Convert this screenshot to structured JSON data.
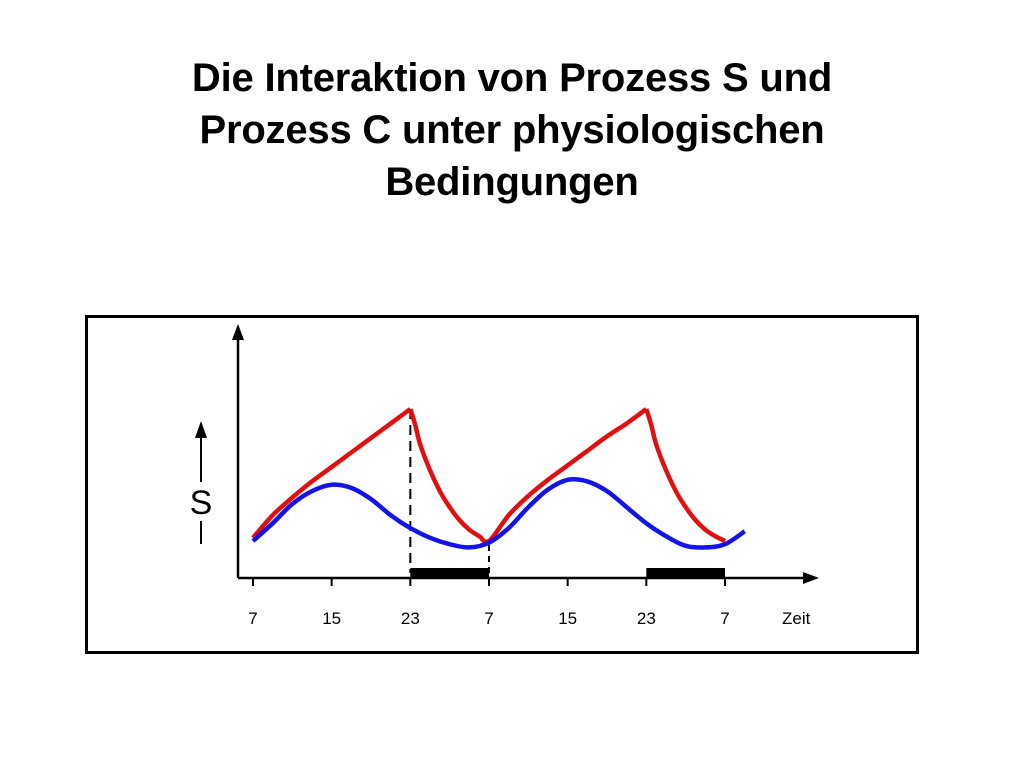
{
  "title": {
    "lines": [
      "Die Interaktion von Prozess S und",
      "Prozess C unter physiologischen",
      "Bedingungen"
    ]
  },
  "chart_data": {
    "type": "line",
    "xlabel": "Zeit",
    "ylabel": "S",
    "x_ticks": [
      "7",
      "15",
      "23",
      "7",
      "15",
      "23",
      "7"
    ],
    "x_tick_hours": [
      7,
      15,
      23,
      31,
      39,
      47,
      55
    ],
    "xlim": [
      7,
      58
    ],
    "ylim": [
      0,
      1
    ],
    "grid": false,
    "colors": {
      "process_s": "#e01010",
      "process_c": "#1414e6",
      "axis": "#000000"
    },
    "sleep_periods": [
      [
        23,
        31
      ],
      [
        47,
        55
      ]
    ],
    "series": [
      {
        "key": "process_s",
        "x": [
          7,
          9,
          11,
          13,
          15,
          17,
          19,
          21,
          23,
          23.5,
          24,
          25,
          26,
          27,
          28,
          29,
          30,
          31,
          33,
          35,
          37,
          39,
          41,
          43,
          45,
          47,
          47.5,
          48,
          49,
          50,
          51,
          52,
          53,
          54,
          55
        ],
        "values": [
          0.02,
          0.16,
          0.27,
          0.37,
          0.46,
          0.55,
          0.64,
          0.73,
          0.82,
          0.72,
          0.6,
          0.44,
          0.31,
          0.21,
          0.13,
          0.07,
          0.03,
          0.0,
          0.16,
          0.28,
          0.38,
          0.47,
          0.56,
          0.65,
          0.73,
          0.82,
          0.72,
          0.6,
          0.44,
          0.31,
          0.21,
          0.13,
          0.07,
          0.03,
          0.0
        ]
      },
      {
        "key": "process_c",
        "x": [
          7,
          9,
          11,
          13,
          15,
          17,
          19,
          21,
          23,
          25,
          27,
          29,
          31,
          33,
          35,
          37,
          39,
          41,
          43,
          45,
          47,
          49,
          51,
          53,
          55,
          57
        ],
        "values": [
          0.0,
          0.11,
          0.23,
          0.31,
          0.35,
          0.33,
          0.26,
          0.16,
          0.08,
          0.02,
          -0.02,
          -0.04,
          -0.01,
          0.08,
          0.21,
          0.32,
          0.38,
          0.37,
          0.31,
          0.21,
          0.11,
          0.03,
          -0.03,
          -0.04,
          -0.02,
          0.06
        ]
      }
    ]
  }
}
